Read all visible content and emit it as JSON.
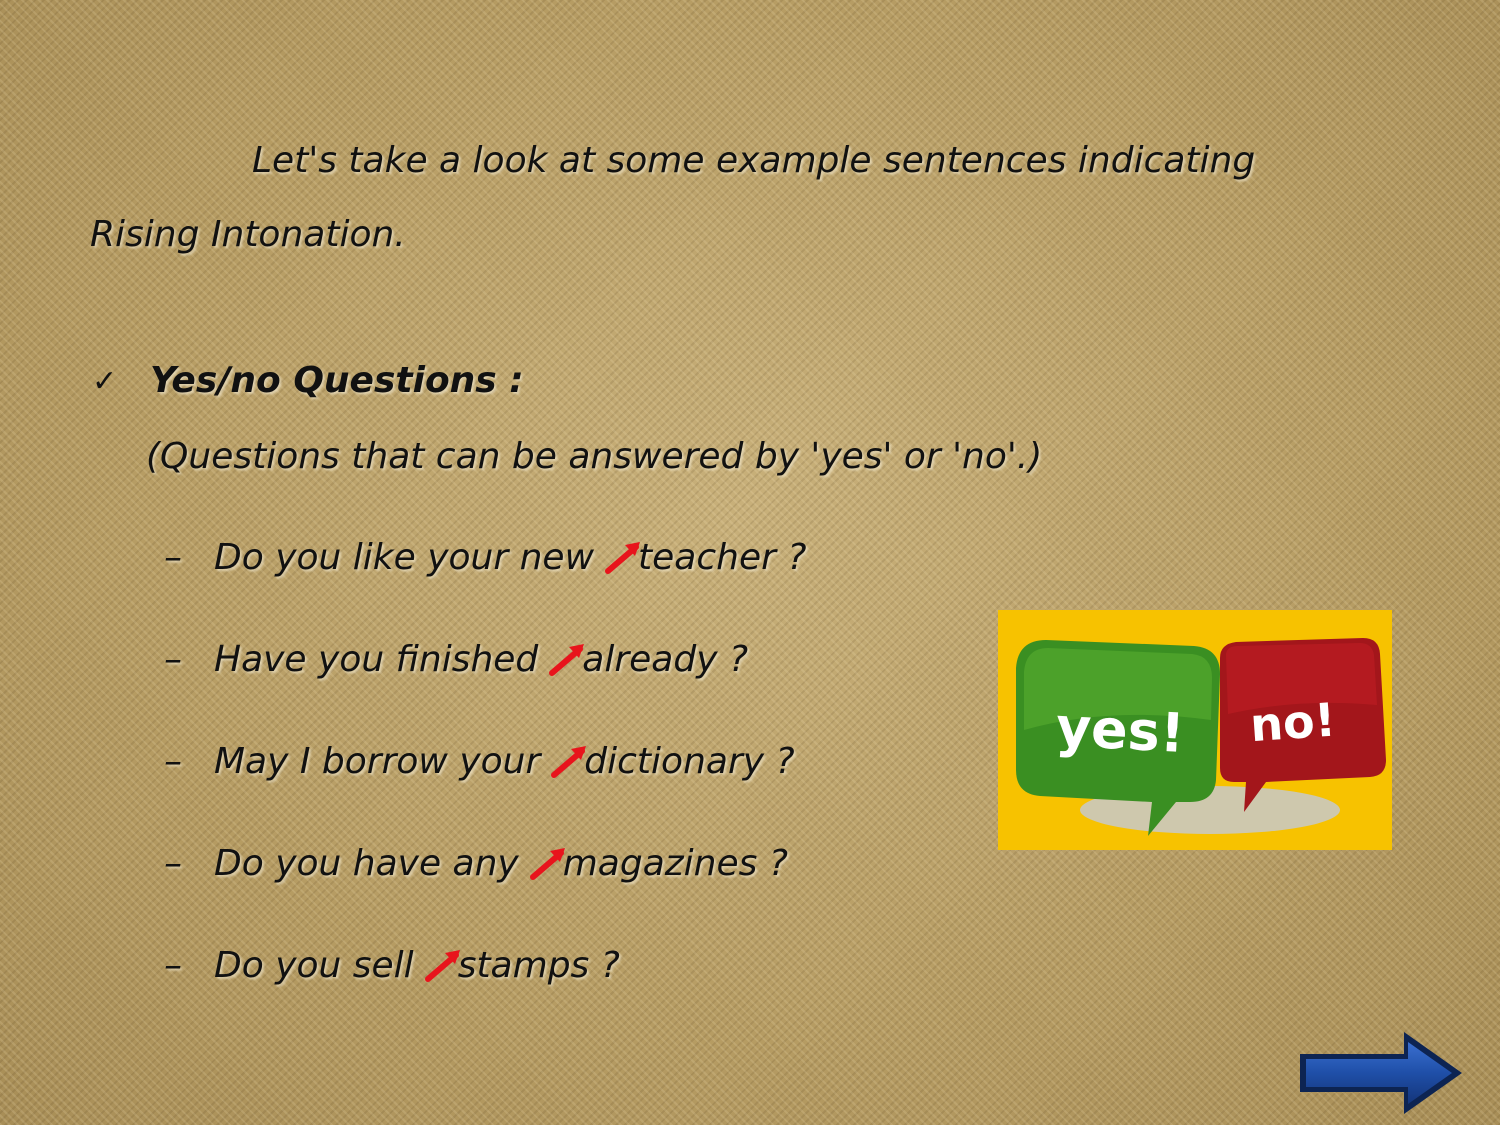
{
  "intro": {
    "line1": "Let's take a look at some example sentences indicating",
    "line2": "Rising Intonation."
  },
  "section": {
    "check_glyph": "✓",
    "title": "Yes/no Questions :",
    "description": "(Questions that can be answered by 'yes' or 'no'.)"
  },
  "questions": [
    {
      "dash": "–",
      "before": "Do you like your new",
      "after": "teacher ?"
    },
    {
      "dash": "–",
      "before": "Have you finished",
      "after": "already ?"
    },
    {
      "dash": "–",
      "before": "May I borrow your",
      "after": "dictionary ?"
    },
    {
      "dash": "–",
      "before": "Do you have any",
      "after": "magazines ?"
    },
    {
      "dash": "–",
      "before": "Do you sell",
      "after": "stamps ?"
    }
  ],
  "image": {
    "yes_text": "yes!",
    "no_text": "no!"
  },
  "colors": {
    "arrow": "#e8141c",
    "yes_bubble": "#3a8f22",
    "no_bubble": "#a3161b",
    "image_bg": "#f7c200",
    "next_button": "#1f4fa8"
  },
  "icons": {
    "rising_arrow": "rising-intonation-arrow-icon",
    "next": "right-arrow-icon"
  }
}
